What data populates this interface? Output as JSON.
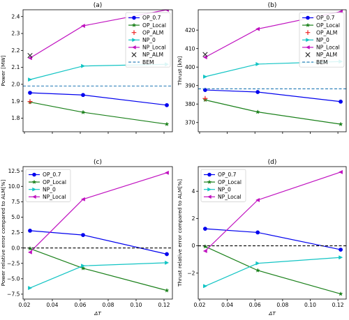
{
  "chart_data": [
    {
      "type": "line",
      "title": "(a)",
      "xlabel": "",
      "ylabel": "Power [MW]",
      "xlim": [
        0.019,
        0.126
      ],
      "ylim": [
        1.72,
        2.44
      ],
      "xticks": [
        0.02,
        0.04,
        0.06,
        0.08,
        0.1,
        0.12
      ],
      "show_xticklabels": false,
      "yticks": [
        1.8,
        1.9,
        2.0,
        2.1,
        2.2,
        2.3,
        2.4
      ],
      "ytick_labels": [
        "1.8",
        "1.9",
        "2.0",
        "2.1",
        "2.2",
        "2.3",
        "2.4"
      ],
      "legend_position": "top-right",
      "series": [
        {
          "name": "OP_0.7",
          "color": "#0000ee",
          "marker": "circle",
          "linestyle": "solid",
          "x": [
            0.024,
            0.062,
            0.122
          ],
          "y": [
            1.95,
            1.937,
            1.877
          ]
        },
        {
          "name": "OP_Local",
          "color": "#1a801a",
          "marker": "star",
          "linestyle": "solid",
          "x": [
            0.024,
            0.062,
            0.122
          ],
          "y": [
            1.895,
            1.835,
            1.765
          ]
        },
        {
          "name": "OP_ALM",
          "color": "#ee2222",
          "marker": "plus",
          "linestyle": "none",
          "x": [
            0.024
          ],
          "y": [
            1.898
          ]
        },
        {
          "name": "NP_0",
          "color": "#12c4c4",
          "marker": "triangle-right",
          "linestyle": "solid",
          "x": [
            0.024,
            0.062,
            0.122
          ],
          "y": [
            2.028,
            2.108,
            2.118
          ]
        },
        {
          "name": "NP_Local",
          "color": "#c012c0",
          "marker": "triangle-left",
          "linestyle": "solid",
          "x": [
            0.024,
            0.062,
            0.122
          ],
          "y": [
            2.155,
            2.345,
            2.44
          ]
        },
        {
          "name": "NP_ALM",
          "color": "#222222",
          "marker": "x",
          "linestyle": "none",
          "x": [
            0.024
          ],
          "y": [
            2.17
          ]
        },
        {
          "name": "BEM",
          "color": "#1f77b4",
          "marker": "none",
          "linestyle": "dashed",
          "hline": 1.99
        }
      ]
    },
    {
      "type": "line",
      "title": "(b)",
      "xlabel": "",
      "ylabel": "Thrust [kN]",
      "xlim": [
        0.019,
        0.126
      ],
      "ylim": [
        365,
        431
      ],
      "xticks": [
        0.02,
        0.04,
        0.06,
        0.08,
        0.1,
        0.12
      ],
      "show_xticklabels": false,
      "yticks": [
        370,
        380,
        390,
        400,
        410,
        420
      ],
      "ytick_labels": [
        "370",
        "380",
        "390",
        "400",
        "410",
        "420"
      ],
      "legend_position": "top-right",
      "series": [
        {
          "name": "OP_0.7",
          "color": "#0000ee",
          "marker": "circle",
          "linestyle": "solid",
          "x": [
            0.024,
            0.062,
            0.122
          ],
          "y": [
            387.6,
            386.5,
            381.3
          ]
        },
        {
          "name": "OP_Local",
          "color": "#1a801a",
          "marker": "star",
          "linestyle": "solid",
          "x": [
            0.024,
            0.062,
            0.122
          ],
          "y": [
            382.2,
            375.7,
            369.1
          ]
        },
        {
          "name": "OP_ALM",
          "color": "#ee2222",
          "marker": "plus",
          "linestyle": "none",
          "x": [
            0.024
          ],
          "y": [
            383.0
          ]
        },
        {
          "name": "NP_0",
          "color": "#12c4c4",
          "marker": "triangle-right",
          "linestyle": "solid",
          "x": [
            0.024,
            0.062,
            0.122
          ],
          "y": [
            394.8,
            401.6,
            403.0
          ]
        },
        {
          "name": "NP_Local",
          "color": "#c012c0",
          "marker": "triangle-left",
          "linestyle": "solid",
          "x": [
            0.024,
            0.062,
            0.122
          ],
          "y": [
            405.3,
            420.6,
            430.0
          ]
        },
        {
          "name": "NP_ALM",
          "color": "#222222",
          "marker": "x",
          "linestyle": "none",
          "x": [
            0.024
          ],
          "y": [
            406.8
          ]
        },
        {
          "name": "BEM",
          "color": "#1f77b4",
          "marker": "none",
          "linestyle": "dashed",
          "hline": 388.2
        }
      ]
    },
    {
      "type": "line",
      "title": "(c)",
      "xlabel": "ΔT",
      "ylabel": "Power relative error compared to ALM[%]",
      "xlim": [
        0.019,
        0.126
      ],
      "ylim": [
        -8.3,
        13.2
      ],
      "xticks": [
        0.02,
        0.04,
        0.06,
        0.08,
        0.1,
        0.12
      ],
      "xtick_labels": [
        "0.02",
        "0.04",
        "0.06",
        "0.08",
        "0.10",
        "0.12"
      ],
      "show_xticklabels": true,
      "yticks": [
        -7.5,
        -5.0,
        -2.5,
        0.0,
        2.5,
        5.0,
        7.5,
        10.0,
        12.5
      ],
      "ytick_labels": [
        "−7.5",
        "−5.0",
        "−2.5",
        "0.0",
        "2.5",
        "5.0",
        "7.5",
        "10.0",
        "12.5"
      ],
      "legend_position": "top-left",
      "series": [
        {
          "name": "OP_0.7",
          "color": "#0000ee",
          "marker": "circle",
          "linestyle": "solid",
          "x": [
            0.024,
            0.062,
            0.122
          ],
          "y": [
            2.8,
            2.1,
            -1.0
          ]
        },
        {
          "name": "OP_Local",
          "color": "#1a801a",
          "marker": "star",
          "linestyle": "solid",
          "x": [
            0.024,
            0.062,
            0.122
          ],
          "y": [
            -0.1,
            -3.3,
            -6.9
          ]
        },
        {
          "name": "NP_0",
          "color": "#12c4c4",
          "marker": "triangle-right",
          "linestyle": "solid",
          "x": [
            0.024,
            0.062,
            0.122
          ],
          "y": [
            -6.5,
            -2.9,
            -2.4
          ]
        },
        {
          "name": "NP_Local",
          "color": "#c012c0",
          "marker": "triangle-left",
          "linestyle": "solid",
          "x": [
            0.024,
            0.062,
            0.122
          ],
          "y": [
            -0.7,
            7.9,
            12.2
          ]
        },
        {
          "name": "",
          "color": "#000000",
          "marker": "none",
          "linestyle": "dashed",
          "hline": 0
        }
      ]
    },
    {
      "type": "line",
      "title": "(d)",
      "xlabel": "ΔT",
      "ylabel": "Thrust relative error compared to ALM[%]",
      "xlim": [
        0.019,
        0.126
      ],
      "ylim": [
        -3.9,
        5.8
      ],
      "xticks": [
        0.02,
        0.04,
        0.06,
        0.08,
        0.1,
        0.12
      ],
      "xtick_labels": [
        "0.02",
        "0.04",
        "0.06",
        "0.08",
        "0.10",
        "0.12"
      ],
      "show_xticklabels": true,
      "yticks": [
        -2,
        0,
        2,
        4
      ],
      "ytick_labels": [
        "−2",
        "0",
        "2",
        "4"
      ],
      "legend_position": "top-left",
      "series": [
        {
          "name": "OP_0.7",
          "color": "#0000ee",
          "marker": "circle",
          "linestyle": "solid",
          "x": [
            0.024,
            0.062,
            0.122
          ],
          "y": [
            1.25,
            0.98,
            -0.28
          ]
        },
        {
          "name": "OP_Local",
          "color": "#1a801a",
          "marker": "star",
          "linestyle": "solid",
          "x": [
            0.024,
            0.062,
            0.122
          ],
          "y": [
            -0.05,
            -1.8,
            -3.52
          ]
        },
        {
          "name": "NP_0",
          "color": "#12c4c4",
          "marker": "triangle-right",
          "linestyle": "solid",
          "x": [
            0.024,
            0.062,
            0.122
          ],
          "y": [
            -2.95,
            -1.28,
            -0.85
          ]
        },
        {
          "name": "NP_Local",
          "color": "#c012c0",
          "marker": "triangle-left",
          "linestyle": "solid",
          "x": [
            0.024,
            0.062,
            0.122
          ],
          "y": [
            -0.38,
            3.35,
            5.4
          ]
        },
        {
          "name": "",
          "color": "#000000",
          "marker": "none",
          "linestyle": "dashed",
          "hline": 0
        }
      ]
    }
  ]
}
